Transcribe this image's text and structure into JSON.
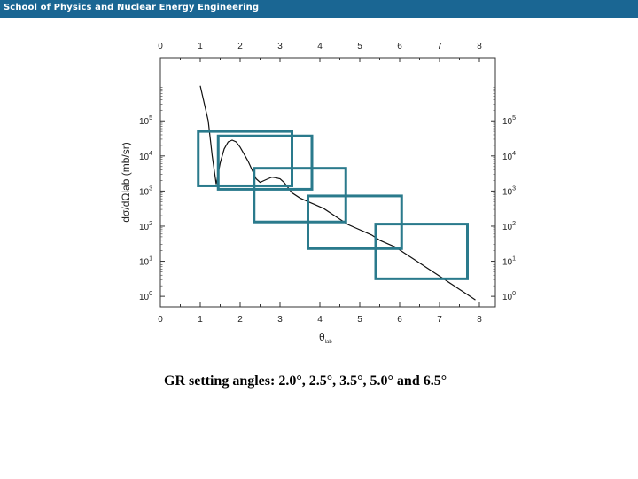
{
  "header": {
    "title": "School of Physics and Nuclear Energy Engineering"
  },
  "caption": "GR setting angles: 2.0°, 2.5°, 3.5°, 5.0° and 6.5°",
  "chart_data": {
    "type": "line",
    "xlabel": "θlab",
    "ylabel": "dσ/dΩlab (mb/sr)",
    "xlim": [
      0,
      8.4
    ],
    "ylog": true,
    "ylim_log10": [
      -0.3,
      6.8
    ],
    "x_ticks": [
      "0",
      "1",
      "2",
      "3",
      "4",
      "5",
      "6",
      "7",
      "8"
    ],
    "y_ticks": [
      {
        "base": "10",
        "exp": "0"
      },
      {
        "base": "10",
        "exp": "1"
      },
      {
        "base": "10",
        "exp": "2"
      },
      {
        "base": "10",
        "exp": "3"
      },
      {
        "base": "10",
        "exp": "4"
      },
      {
        "base": "10",
        "exp": "5"
      }
    ],
    "grid": false,
    "line_color": "#111111",
    "box_color": "#2a7a8c",
    "series": [
      {
        "x": [
          1.0,
          1.1,
          1.2,
          1.3,
          1.4,
          1.5,
          1.6,
          1.7,
          1.8,
          1.9,
          2.0,
          2.1,
          2.2,
          2.3,
          2.4,
          2.5,
          2.6,
          2.7,
          2.8,
          2.9,
          3.0,
          3.1,
          3.2,
          3.3,
          3.5,
          3.7,
          3.9,
          4.1,
          4.3,
          4.5,
          4.7,
          4.9,
          5.1,
          5.3,
          5.5,
          5.7,
          5.9,
          6.1,
          6.3,
          6.5,
          6.7,
          6.9,
          7.1,
          7.3,
          7.5,
          7.7,
          7.9
        ],
        "y_log10": [
          6.0,
          5.5,
          5.0,
          4.0,
          3.2,
          3.8,
          4.2,
          4.4,
          4.45,
          4.4,
          4.25,
          4.05,
          3.85,
          3.6,
          3.35,
          3.25,
          3.3,
          3.35,
          3.4,
          3.38,
          3.35,
          3.25,
          3.1,
          2.95,
          2.8,
          2.7,
          2.6,
          2.5,
          2.35,
          2.2,
          2.05,
          1.95,
          1.85,
          1.75,
          1.6,
          1.5,
          1.4,
          1.25,
          1.1,
          0.95,
          0.8,
          0.65,
          0.5,
          0.35,
          0.2,
          0.05,
          -0.1
        ]
      }
    ],
    "setting_angles": [
      2.0,
      2.5,
      3.5,
      5.0,
      6.5
    ],
    "acceptance_boxes": [
      {
        "x": [
          0.95,
          3.3
        ],
        "y_log10": [
          3.15,
          4.7
        ]
      },
      {
        "x": [
          1.45,
          3.8
        ],
        "y_log10": [
          3.05,
          4.57
        ]
      },
      {
        "x": [
          2.35,
          4.65
        ],
        "y_log10": [
          2.12,
          3.65
        ]
      },
      {
        "x": [
          3.7,
          6.05
        ],
        "y_log10": [
          1.36,
          2.86
        ]
      },
      {
        "x": [
          5.4,
          7.7
        ],
        "y_log10": [
          0.5,
          2.06
        ]
      }
    ]
  }
}
